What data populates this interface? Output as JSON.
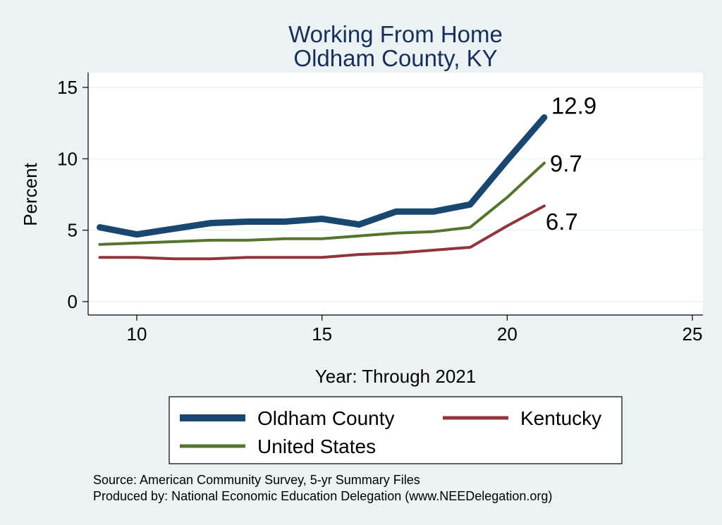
{
  "chart_data": {
    "type": "line",
    "title": "Working From Home",
    "subtitle": "Oldham County, KY",
    "xlabel": "Year: Through 2021",
    "ylabel": "Percent",
    "xlim": [
      9,
      25
    ],
    "ylim": [
      0,
      15
    ],
    "x_ticks": [
      10,
      15,
      20,
      25
    ],
    "y_ticks": [
      0,
      5,
      10,
      15
    ],
    "grid": true,
    "legend_position": "bottom",
    "series": [
      {
        "name": "Oldham County",
        "color": "#1a476f",
        "x": [
          9,
          10,
          11,
          12,
          13,
          14,
          15,
          16,
          17,
          18,
          19,
          20,
          21
        ],
        "values": [
          5.2,
          4.7,
          5.1,
          5.5,
          5.6,
          5.6,
          5.8,
          5.4,
          6.3,
          6.3,
          6.8,
          9.9,
          12.9
        ],
        "end_label": "12.9"
      },
      {
        "name": "Kentucky",
        "color": "#90353b",
        "x": [
          9,
          10,
          11,
          12,
          13,
          14,
          15,
          16,
          17,
          18,
          19,
          20,
          21
        ],
        "values": [
          3.1,
          3.1,
          3.0,
          3.0,
          3.1,
          3.1,
          3.1,
          3.3,
          3.4,
          3.6,
          3.8,
          5.3,
          6.7
        ],
        "end_label": "6.7"
      },
      {
        "name": "United States",
        "color": "#55752f",
        "x": [
          9,
          10,
          11,
          12,
          13,
          14,
          15,
          16,
          17,
          18,
          19,
          20,
          21
        ],
        "values": [
          4.0,
          4.1,
          4.2,
          4.3,
          4.3,
          4.4,
          4.4,
          4.6,
          4.8,
          4.9,
          5.2,
          7.3,
          9.7
        ],
        "end_label": "9.7"
      }
    ]
  },
  "source_note": "Source: American Community Survey, 5-yr Summary Files",
  "producer_note": "Produced by: National Economic Education Delegation (www.NEEDelegation.org)"
}
